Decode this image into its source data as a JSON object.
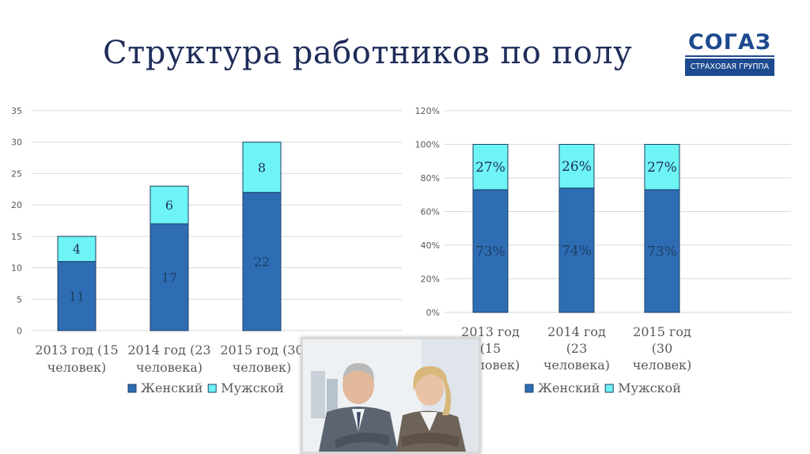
{
  "title": "Структура работников по полу",
  "logo": {
    "name": "СОГАЗ",
    "subtitle": "СТРАХОВАЯ ГРУППА"
  },
  "colors": {
    "female": "#2e6db4",
    "male": "#6ef4f4",
    "title": "#1f2d5a",
    "axis_text": "#595959",
    "grid": "#d9d9d9"
  },
  "photo": {
    "icon": "business-people-photo"
  },
  "chart_data": [
    {
      "type": "bar",
      "stacked": true,
      "categories": [
        "2013 год (15 человек)",
        "2014 год (23 человека)",
        "2015 год (30 человек)"
      ],
      "series": [
        {
          "name": "Женский",
          "values": [
            11,
            17,
            22
          ]
        },
        {
          "name": "Мужской",
          "values": [
            4,
            6,
            8
          ]
        }
      ],
      "ylim": [
        0,
        35
      ],
      "yticks": [
        "0",
        "5",
        "10",
        "15",
        "20",
        "25",
        "30",
        "35"
      ],
      "grid": true,
      "legend": "bottom"
    },
    {
      "type": "bar",
      "stacked": true,
      "percent": true,
      "categories": [
        "2013 год (15 человек)",
        "2014 год (23 человека)",
        "2015 год (30 человек)"
      ],
      "series": [
        {
          "name": "Женский",
          "values": [
            73,
            74,
            73
          ],
          "labels": [
            "73%",
            "74%",
            "73%"
          ]
        },
        {
          "name": "Мужской",
          "values": [
            27,
            26,
            27
          ],
          "labels": [
            "27%",
            "26%",
            "27%"
          ]
        }
      ],
      "ylim": [
        0,
        120
      ],
      "yticks": [
        "0%",
        "20%",
        "40%",
        "60%",
        "80%",
        "100%",
        "120%"
      ],
      "grid": true,
      "legend": "bottom"
    }
  ]
}
